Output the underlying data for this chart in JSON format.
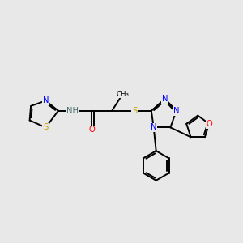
{
  "bg_color": "#e8e8e8",
  "bond_color": "#000000",
  "atom_colors": {
    "N": "#0000ff",
    "S": "#c8a000",
    "O": "#ff0000",
    "C": "#000000",
    "H": "#4a7070"
  },
  "font_size": 7.2,
  "line_width": 1.4,
  "dbo": 0.055
}
